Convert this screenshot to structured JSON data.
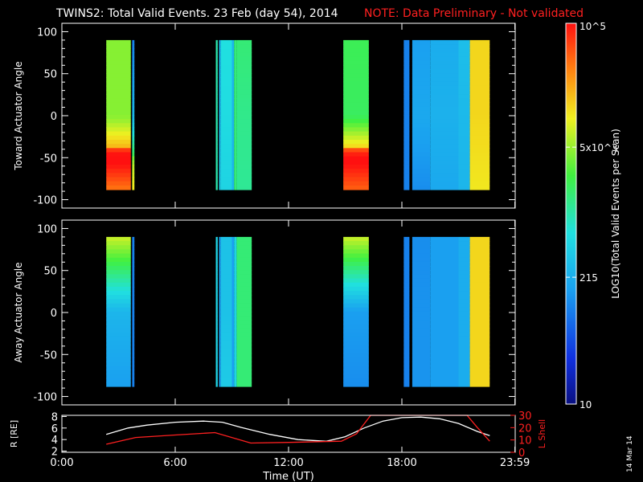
{
  "title": {
    "main": "TWINS2: Total Valid Events. 23 Feb (day  54), 2014",
    "note": "NOTE: Data Preliminary - Not validated"
  },
  "stamp": "14 Mar 14",
  "colors": {
    "background": "#000000",
    "axis": "#ffffff",
    "note": "#ff2020",
    "lshell": "#ff2020",
    "radius": "#ffffff"
  },
  "colorbar": {
    "label": "LOG10(Total Valid Events per Scan)",
    "ticks": [
      {
        "value": 100000,
        "label": "10^5"
      },
      {
        "value": 5000,
        "label": "5x10^3"
      },
      {
        "value": 215,
        "label": "215"
      },
      {
        "value": 10,
        "label": "10"
      }
    ],
    "range": [
      10,
      100000
    ],
    "colormap": "rainbow"
  },
  "chart_data": [
    {
      "type": "heatmap",
      "ylabel": "Toward Actuator Angle",
      "ylim": [
        -110,
        110
      ],
      "yticks": [
        100,
        50,
        0,
        -50,
        -100
      ],
      "xlim": [
        0,
        24
      ],
      "angle_range": [
        -88,
        90
      ],
      "segments": [
        {
          "start": 2.35,
          "end": 3.65,
          "top": 0.66,
          "bottom": 0.85,
          "mid": 0.66,
          "pivot": -50,
          "strength": 0.26
        },
        {
          "start": 3.72,
          "end": 3.84,
          "top": 0.25,
          "bottom": 0.72,
          "mid": 0.35,
          "pivot": -60,
          "strength": 0.1
        },
        {
          "start": 8.15,
          "end": 8.25,
          "top": 0.5,
          "bottom": 0.5,
          "mid": 0.5,
          "pivot": 0,
          "strength": 0.0
        },
        {
          "start": 8.32,
          "end": 8.42,
          "top": 0.35,
          "bottom": 0.4,
          "mid": 0.35,
          "pivot": 0,
          "strength": 0.0
        },
        {
          "start": 8.42,
          "end": 9.0,
          "top": 0.45,
          "bottom": 0.42,
          "mid": 0.44,
          "pivot": 0,
          "strength": 0.0
        },
        {
          "start": 9.0,
          "end": 9.12,
          "top": 0.35,
          "bottom": 0.35,
          "mid": 0.35,
          "pivot": 0,
          "strength": 0.0
        },
        {
          "start": 9.12,
          "end": 9.25,
          "top": 0.55,
          "bottom": 0.55,
          "mid": 0.55,
          "pivot": 0,
          "strength": 0.0
        },
        {
          "start": 9.25,
          "end": 10.05,
          "top": 0.55,
          "bottom": 0.52,
          "mid": 0.53,
          "pivot": 0,
          "strength": 0.0
        },
        {
          "start": 14.9,
          "end": 16.25,
          "top": 0.58,
          "bottom": 0.87,
          "mid": 0.57,
          "pivot": -50,
          "strength": 0.28
        },
        {
          "start": 18.1,
          "end": 18.4,
          "top": 0.25,
          "bottom": 0.25,
          "mid": 0.25,
          "pivot": 0,
          "strength": 0.0
        },
        {
          "start": 18.55,
          "end": 19.5,
          "top": 0.3,
          "bottom": 0.27,
          "mid": 0.32,
          "pivot": 0,
          "strength": 0.0
        },
        {
          "start": 19.5,
          "end": 21.0,
          "top": 0.33,
          "bottom": 0.32,
          "mid": 0.34,
          "pivot": 0,
          "strength": 0.0
        },
        {
          "start": 21.0,
          "end": 21.6,
          "top": 0.37,
          "bottom": 0.35,
          "mid": 0.36,
          "pivot": 0,
          "strength": 0.0
        },
        {
          "start": 21.6,
          "end": 22.65,
          "top": 0.78,
          "bottom": 0.76,
          "mid": 0.78,
          "pivot": 0,
          "strength": 0.0
        }
      ]
    },
    {
      "type": "heatmap",
      "ylabel": "Away Actuator Angle",
      "ylim": [
        -110,
        110
      ],
      "yticks": [
        100,
        50,
        0,
        -50,
        -100
      ],
      "xlim": [
        0,
        24
      ],
      "angle_range": [
        -88,
        90
      ],
      "segments": [
        {
          "start": 2.35,
          "end": 3.65,
          "top": 0.72,
          "bottom": 0.3,
          "mid": 0.35,
          "pivot": 50,
          "strength": 0.0
        },
        {
          "start": 3.72,
          "end": 3.84,
          "top": 0.25,
          "bottom": 0.25,
          "mid": 0.25,
          "pivot": 0,
          "strength": 0.0
        },
        {
          "start": 8.15,
          "end": 8.25,
          "top": 0.42,
          "bottom": 0.42,
          "mid": 0.42,
          "pivot": 0,
          "strength": 0.0
        },
        {
          "start": 8.32,
          "end": 8.42,
          "top": 0.3,
          "bottom": 0.3,
          "mid": 0.3,
          "pivot": 0,
          "strength": 0.0
        },
        {
          "start": 8.42,
          "end": 9.0,
          "top": 0.38,
          "bottom": 0.4,
          "mid": 0.38,
          "pivot": 0,
          "strength": 0.0
        },
        {
          "start": 9.0,
          "end": 9.12,
          "top": 0.3,
          "bottom": 0.3,
          "mid": 0.3,
          "pivot": 0,
          "strength": 0.0
        },
        {
          "start": 9.12,
          "end": 9.25,
          "top": 0.42,
          "bottom": 0.42,
          "mid": 0.42,
          "pivot": 0,
          "strength": 0.0
        },
        {
          "start": 9.25,
          "end": 10.05,
          "top": 0.55,
          "bottom": 0.55,
          "mid": 0.55,
          "pivot": 0,
          "strength": 0.0
        },
        {
          "start": 14.9,
          "end": 16.25,
          "top": 0.72,
          "bottom": 0.27,
          "mid": 0.3,
          "pivot": 40,
          "strength": 0.0
        },
        {
          "start": 18.1,
          "end": 18.4,
          "top": 0.25,
          "bottom": 0.25,
          "mid": 0.25,
          "pivot": 0,
          "strength": 0.0
        },
        {
          "start": 18.55,
          "end": 19.5,
          "top": 0.27,
          "bottom": 0.28,
          "mid": 0.28,
          "pivot": 0,
          "strength": 0.0
        },
        {
          "start": 19.5,
          "end": 21.0,
          "top": 0.3,
          "bottom": 0.3,
          "mid": 0.3,
          "pivot": 0,
          "strength": 0.0
        },
        {
          "start": 21.0,
          "end": 21.6,
          "top": 0.33,
          "bottom": 0.33,
          "mid": 0.33,
          "pivot": 0,
          "strength": 0.0
        },
        {
          "start": 21.6,
          "end": 22.65,
          "top": 0.78,
          "bottom": 0.78,
          "mid": 0.78,
          "pivot": 0,
          "strength": 0.0
        }
      ]
    },
    {
      "type": "line",
      "xlabel": "Time (UT)",
      "xticks": [
        {
          "value": 0,
          "label": "0:00"
        },
        {
          "value": 6,
          "label": "6:00"
        },
        {
          "value": 12,
          "label": "12:00"
        },
        {
          "value": 18,
          "label": "18:00"
        },
        {
          "value": 23.983,
          "label": "23:59"
        }
      ],
      "xlim": [
        0,
        24
      ],
      "left_axis": {
        "label": "R [RE]",
        "ylim": [
          1.8,
          8.2
        ],
        "ticks": [
          8,
          6,
          4,
          2
        ]
      },
      "right_axis": {
        "label": "L Shell",
        "ylim": [
          0,
          30
        ],
        "ticks": [
          30,
          20,
          10,
          0
        ]
      },
      "series": [
        {
          "name": "R [RE]",
          "axis": "left",
          "x": [
            2.35,
            3.5,
            4.5,
            6,
            7.5,
            8.5,
            9.5,
            11,
            12.5,
            14,
            15,
            16,
            17,
            18,
            19,
            20,
            21,
            22,
            22.65
          ],
          "y": [
            4.9,
            6.0,
            6.5,
            7.0,
            7.2,
            7.0,
            6.1,
            4.9,
            4.0,
            3.7,
            4.5,
            6.0,
            7.2,
            7.8,
            7.9,
            7.6,
            6.8,
            5.4,
            4.7
          ]
        },
        {
          "name": "L Shell",
          "axis": "right",
          "x": [
            2.35,
            3.9,
            6.0,
            8.1,
            10.0,
            12.0,
            14.8,
            15.6,
            16.35,
            21.45,
            22.0,
            22.65
          ],
          "y": [
            6.5,
            12.0,
            14.0,
            16.0,
            7.5,
            8.0,
            9.0,
            15.0,
            30.0,
            30.0,
            20.0,
            9.0
          ]
        }
      ]
    }
  ]
}
